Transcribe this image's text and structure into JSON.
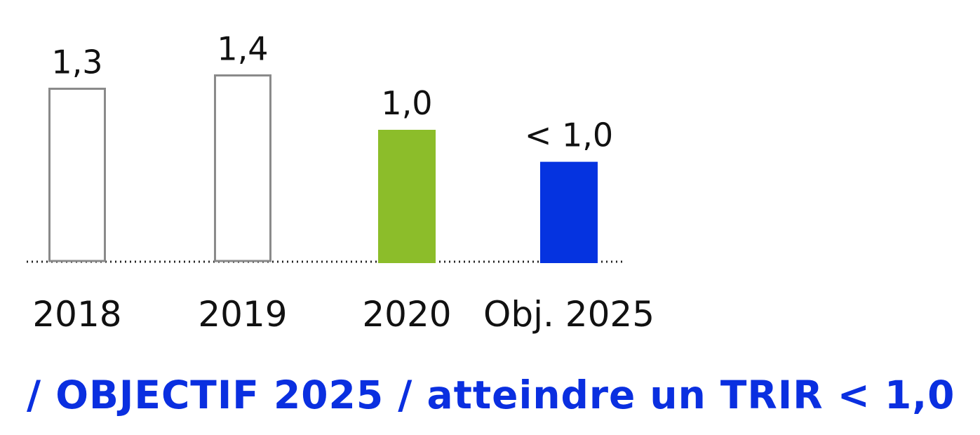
{
  "chart_data": {
    "type": "bar",
    "categories": [
      "2018",
      "2019",
      "2020",
      "Obj. 2025"
    ],
    "values": [
      1.3,
      1.4,
      1.0,
      1.0
    ],
    "data_labels": [
      "1,3",
      "1,4",
      "1,0",
      "< 1,0"
    ],
    "bar_styles": [
      "outline",
      "outline",
      "filled",
      "filled"
    ],
    "colors": {
      "outline": "#8a8a8a",
      "2020": "#8cbd2a",
      "objective": "#0533e0",
      "text": "#111111"
    },
    "baseline": "dotted",
    "ylim": [
      0,
      1.6
    ],
    "grid": false,
    "legend": "none"
  },
  "footer": {
    "title": "/ OBJECTIF 2025 / atteindre un TRIR < 1,0"
  }
}
